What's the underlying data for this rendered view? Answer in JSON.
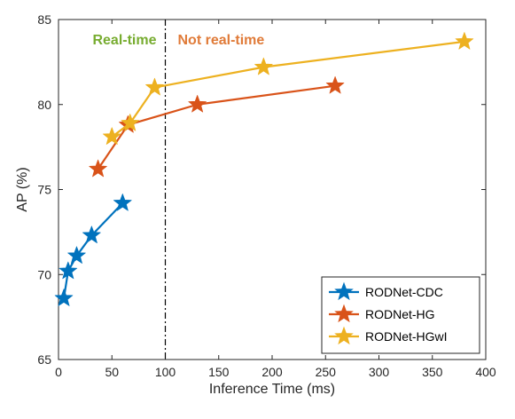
{
  "chart_data": {
    "type": "line",
    "xlabel": "Inference Time (ms)",
    "ylabel": "AP (%)",
    "xlim": [
      0,
      400
    ],
    "ylim": [
      65,
      85
    ],
    "xticks": [
      0,
      50,
      100,
      150,
      200,
      250,
      300,
      350,
      400
    ],
    "yticks": [
      65,
      70,
      75,
      80,
      85
    ],
    "grid": false,
    "legend_position": "bottom-right",
    "marker": "star",
    "series": [
      {
        "name": "RODNet-CDC",
        "color": "#0072BD",
        "x": [
          5,
          9,
          17,
          31,
          60
        ],
        "y": [
          68.6,
          70.2,
          71.1,
          72.3,
          74.2
        ]
      },
      {
        "name": "RODNet-HG",
        "color": "#D95319",
        "x": [
          37,
          65,
          130,
          259
        ],
        "y": [
          76.2,
          78.8,
          80.0,
          81.1
        ]
      },
      {
        "name": "RODNet-HGwI",
        "color": "#EDB120",
        "x": [
          50,
          67,
          90,
          192,
          380
        ],
        "y": [
          78.1,
          78.9,
          81.0,
          82.2,
          83.7
        ]
      }
    ],
    "annotations": [
      {
        "type": "vline",
        "x": 100,
        "style": "dash-dot",
        "color": "#000000"
      },
      {
        "type": "text",
        "text": "Real-time",
        "color": "#77AC30"
      },
      {
        "type": "text",
        "text": "Not real-time",
        "color": "#E07B39"
      }
    ]
  }
}
